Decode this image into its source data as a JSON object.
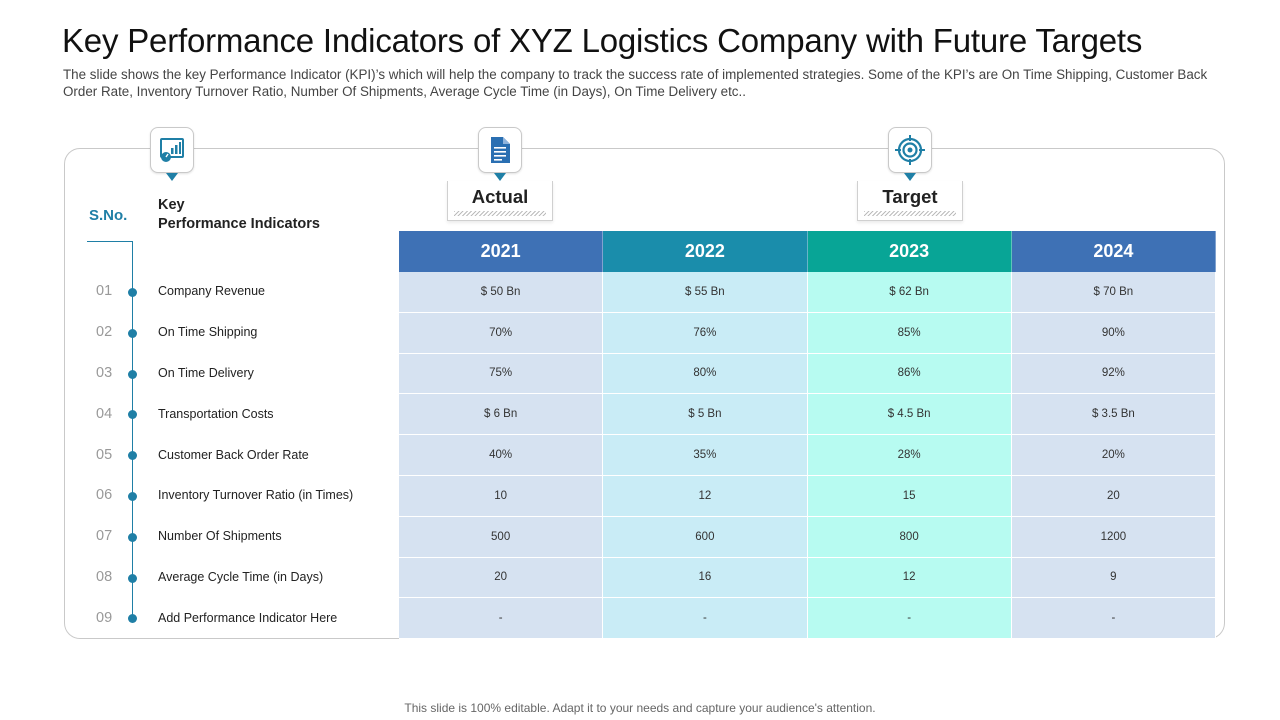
{
  "slide": {
    "title": "Key Performance Indicators of XYZ Logistics Company with Future Targets",
    "subtitle": "The slide shows the key Performance Indicator (KPI)’s which will help the company to track the success rate of implemented strategies. Some of the KPI’s are On Time Shipping, Customer Back Order Rate, Inventory Turnover Ratio, Number Of Shipments, Average Cycle Time (in Days), On Time Delivery etc..",
    "footer": "This slide is 100% editable. Adapt it to your needs and capture your audience's attention."
  },
  "icons": {
    "kpi": "chart-gauge-icon",
    "actual": "document-icon",
    "target": "target-icon",
    "accent": "#1f7fa6"
  },
  "table": {
    "sno_header": "S.No.",
    "kpi_header_line1": "Key",
    "kpi_header_line2": "Performance Indicators",
    "actual_label": "Actual",
    "target_label": "Target",
    "years": [
      {
        "label": "2021",
        "header_color": "#3e71b5",
        "cell_color": "#d6e2f1"
      },
      {
        "label": "2022",
        "header_color": "#1a8dab",
        "cell_color": "#c9ecf6"
      },
      {
        "label": "2023",
        "header_color": "#08a596",
        "cell_color": "#b7fbf1"
      },
      {
        "label": "2024",
        "header_color": "#3e71b5",
        "cell_color": "#d6e2f1"
      }
    ],
    "rows": [
      {
        "num": "01",
        "label": "Company Revenue",
        "values": [
          "$ 50 Bn",
          "$ 55 Bn",
          "$ 62 Bn",
          "$ 70 Bn"
        ]
      },
      {
        "num": "02",
        "label": "On Time  Shipping",
        "values": [
          "70%",
          "76%",
          "85%",
          "90%"
        ]
      },
      {
        "num": "03",
        "label": "On Time  Delivery",
        "values": [
          "75%",
          "80%",
          "86%",
          "92%"
        ]
      },
      {
        "num": "04",
        "label": "Transportation  Costs",
        "values": [
          "$ 6 Bn",
          "$ 5 Bn",
          "$ 4.5 Bn",
          "$ 3.5 Bn"
        ]
      },
      {
        "num": "05",
        "label": "Customer Back Order Rate",
        "values": [
          "40%",
          "35%",
          "28%",
          "20%"
        ]
      },
      {
        "num": "06",
        "label": "Inventory  Turnover  Ratio  (in Times)",
        "values": [
          "10",
          "12",
          "15",
          "20"
        ]
      },
      {
        "num": "07",
        "label": "Number  Of Shipments",
        "values": [
          "500",
          "600",
          "800",
          "1200"
        ]
      },
      {
        "num": "08",
        "label": "Average  Cycle Time  (in Days)",
        "values": [
          "20",
          "16",
          "12",
          "9"
        ]
      },
      {
        "num": "09",
        "label": "Add Performance  Indicator Here",
        "values": [
          "-",
          "-",
          "-",
          "-"
        ]
      }
    ]
  }
}
